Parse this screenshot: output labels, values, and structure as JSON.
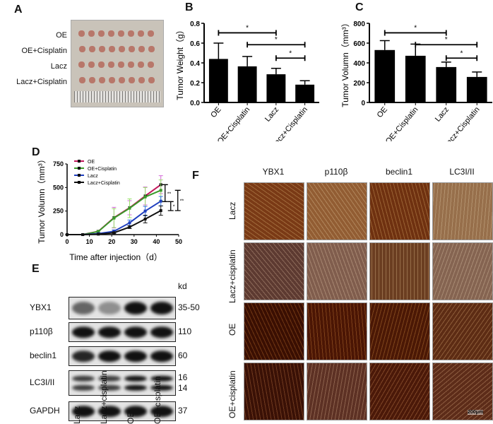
{
  "panels": {
    "a": "A",
    "b": "B",
    "c": "C",
    "d": "D",
    "e": "E",
    "f": "F"
  },
  "panel_a": {
    "rows": [
      "OE",
      "OE+Cisplatin",
      "Lacz",
      "Lacz+Cisplatin"
    ]
  },
  "chart_data": [
    {
      "id": "B",
      "type": "bar",
      "categories": [
        "OE",
        "OE+Cisplatin",
        "Lacz",
        "Lacz+Cisplatin"
      ],
      "values": [
        0.44,
        0.365,
        0.285,
        0.18
      ],
      "errors": [
        0.16,
        0.1,
        0.06,
        0.04
      ],
      "ylabel": "Tumor Weight（g）",
      "ylim": [
        0,
        0.8
      ],
      "yticks": [
        "0.0",
        "0.2",
        "0.4",
        "0.6",
        "0.8"
      ],
      "significance": [
        {
          "from": 0,
          "to": 2,
          "label": "*"
        },
        {
          "from": 1,
          "to": 3,
          "label": "*"
        },
        {
          "from": 2,
          "to": 3,
          "label": "*"
        }
      ]
    },
    {
      "id": "C",
      "type": "bar",
      "categories": [
        "OE",
        "OE+Cisplatin",
        "Lacz",
        "Lacz+Cisplatin"
      ],
      "values": [
        530,
        472,
        358,
        258
      ],
      "errors": [
        95,
        118,
        50,
        50
      ],
      "ylabel": "Tumor Volumn（mm³）",
      "ylim": [
        0,
        800
      ],
      "yticks": [
        "0",
        "200",
        "400",
        "600",
        "800"
      ],
      "significance": [
        {
          "from": 0,
          "to": 2,
          "label": "*"
        },
        {
          "from": 1,
          "to": 3,
          "label": "*"
        },
        {
          "from": 2,
          "to": 3,
          "label": "*"
        }
      ]
    },
    {
      "id": "D",
      "type": "line",
      "x": [
        0,
        7,
        14,
        21,
        28,
        35,
        42
      ],
      "xlabel": "Time after injection（d）",
      "ylabel": "Tumor Volumn（mm³）",
      "xlim": [
        0,
        50
      ],
      "ylim": [
        0,
        750
      ],
      "xticks": [
        "0",
        "10",
        "20",
        "30",
        "40",
        "50"
      ],
      "yticks": [
        "0",
        "250",
        "500",
        "750"
      ],
      "legend": "top-left",
      "series": [
        {
          "name": "OE",
          "color": "#c2185b",
          "err_color": "#d36ad8",
          "values": [
            0,
            0,
            35,
            180,
            285,
            410,
            530
          ],
          "errors": [
            0,
            0,
            10,
            110,
            75,
            95,
            95
          ]
        },
        {
          "name": "OE+Cisplatin",
          "color": "#3a9a2a",
          "err_color": "#9be36b",
          "values": [
            0,
            0,
            33,
            175,
            280,
            400,
            470
          ],
          "errors": [
            0,
            0,
            10,
            100,
            100,
            100,
            110
          ]
        },
        {
          "name": "Lacz",
          "color": "#1f3fbf",
          "err_color": "#2f6fe0",
          "values": [
            0,
            0,
            10,
            35,
            125,
            250,
            355
          ],
          "errors": [
            0,
            0,
            5,
            15,
            30,
            50,
            50
          ]
        },
        {
          "name": "Lacz+Cisplatin",
          "color": "#111111",
          "err_color": "#111111",
          "values": [
            0,
            0,
            5,
            20,
            80,
            165,
            255
          ],
          "errors": [
            0,
            0,
            3,
            8,
            15,
            40,
            50
          ]
        }
      ],
      "significance": [
        "**",
        "*",
        "**"
      ]
    }
  ],
  "panel_e": {
    "kd": "kd",
    "rows": [
      {
        "label": "YBX1",
        "kd": "35-50"
      },
      {
        "label": "p110β",
        "kd": "110"
      },
      {
        "label": "beclin1",
        "kd": "60"
      },
      {
        "label": "LC3I/II",
        "kd": "16",
        "kd2": "14"
      },
      {
        "label": "GAPDH",
        "kd": "37"
      }
    ],
    "lanes": [
      "Lacz",
      "Lacz+cisplatin",
      "OE",
      "OE+cisplatin"
    ]
  },
  "panel_f": {
    "columns": [
      "YBX1",
      "p110β",
      "beclin1",
      "LC3I/II"
    ],
    "rows": [
      "Lacz",
      "Lacz+cisplatin",
      "OE",
      "OE+cisplatin"
    ],
    "scale_bar": "200μm"
  }
}
